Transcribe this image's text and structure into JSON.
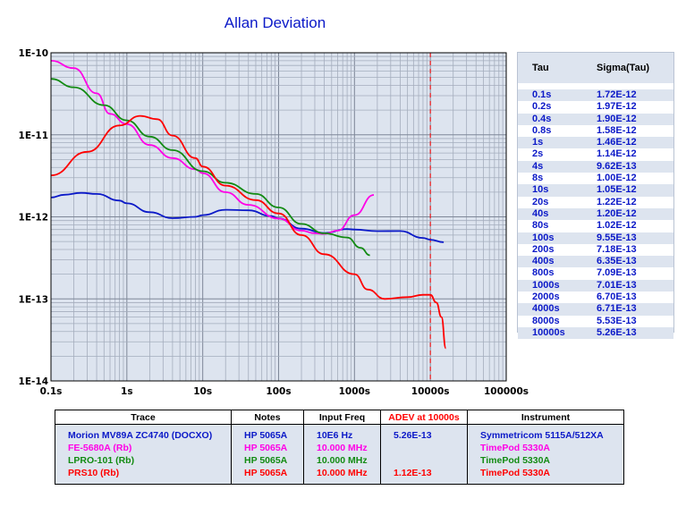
{
  "chart_data": {
    "type": "line",
    "title": "Allan Deviation",
    "x_scale": "log",
    "y_scale": "log",
    "xlim": [
      0.1,
      100000
    ],
    "ylim": [
      1e-14,
      1e-10
    ],
    "grid": true,
    "x_tick_labels": [
      "0.1s",
      "1s",
      "10s",
      "100s",
      "1000s",
      "10000s",
      "100000s"
    ],
    "y_tick_labels": [
      "1E-10",
      "1E-11",
      "1E-12",
      "1E-13",
      "1E-14"
    ],
    "reference_line_x": 10000,
    "series": [
      {
        "name": "Morion MV89A ZC4740 (DOCXO)",
        "color": "#0b19c8",
        "points": [
          [
            0.1,
            1.72e-12
          ],
          [
            0.15,
            1.86e-12
          ],
          [
            0.25,
            1.96e-12
          ],
          [
            0.4,
            1.9e-12
          ],
          [
            0.8,
            1.58e-12
          ],
          [
            1,
            1.46e-12
          ],
          [
            2,
            1.14e-12
          ],
          [
            4,
            9.62e-13
          ],
          [
            8,
            1e-12
          ],
          [
            10,
            1.05e-12
          ],
          [
            20,
            1.22e-12
          ],
          [
            40,
            1.2e-12
          ],
          [
            80,
            1.02e-12
          ],
          [
            100,
            9.55e-13
          ],
          [
            200,
            7.18e-13
          ],
          [
            400,
            6.35e-13
          ],
          [
            800,
            7.09e-13
          ],
          [
            1000,
            7.01e-13
          ],
          [
            2000,
            6.7e-13
          ],
          [
            4000,
            6.71e-13
          ],
          [
            8000,
            5.53e-13
          ],
          [
            10000,
            5.26e-13
          ],
          [
            15000,
            4.9e-13
          ]
        ]
      },
      {
        "name": "FE-5680A (Rb)",
        "color": "#ff00e6",
        "points": [
          [
            0.1,
            8e-11
          ],
          [
            0.2,
            6.5e-11
          ],
          [
            0.4,
            3.2e-11
          ],
          [
            0.6,
            1.8e-11
          ],
          [
            1,
            1.35e-11
          ],
          [
            2,
            7.5e-12
          ],
          [
            4,
            5.2e-12
          ],
          [
            8,
            3.8e-12
          ],
          [
            10,
            3.4e-12
          ],
          [
            20,
            2e-12
          ],
          [
            40,
            1.4e-12
          ],
          [
            100,
            9.5e-13
          ],
          [
            200,
            6.8e-13
          ],
          [
            300,
            6.3e-13
          ],
          [
            400,
            6.2e-13
          ],
          [
            600,
            6.8e-13
          ],
          [
            1000,
            1.05e-12
          ],
          [
            1800,
            1.85e-12
          ]
        ]
      },
      {
        "name": "LPRO-101 (Rb)",
        "color": "#128b12",
        "points": [
          [
            0.1,
            4.8e-11
          ],
          [
            0.2,
            3.8e-11
          ],
          [
            0.5,
            2.3e-11
          ],
          [
            1,
            1.5e-11
          ],
          [
            2,
            9.5e-12
          ],
          [
            4,
            6.5e-12
          ],
          [
            10,
            3.6e-12
          ],
          [
            20,
            2.6e-12
          ],
          [
            50,
            1.9e-12
          ],
          [
            100,
            1.3e-12
          ],
          [
            200,
            8.2e-13
          ],
          [
            400,
            6.3e-13
          ],
          [
            800,
            5.6e-13
          ],
          [
            1200,
            4.2e-13
          ],
          [
            1600,
            3.4e-13
          ]
        ]
      },
      {
        "name": "PRS10 (Rb)",
        "color": "#ff0000",
        "points": [
          [
            0.1,
            3.2e-12
          ],
          [
            0.3,
            6.2e-12
          ],
          [
            0.8,
            1.3e-11
          ],
          [
            1.5,
            1.7e-11
          ],
          [
            2.5,
            1.55e-11
          ],
          [
            4,
            9.8e-12
          ],
          [
            8,
            5.2e-12
          ],
          [
            10,
            4.1e-12
          ],
          [
            20,
            2.4e-12
          ],
          [
            50,
            1.6e-12
          ],
          [
            100,
            1.1e-12
          ],
          [
            200,
            6e-13
          ],
          [
            400,
            3.5e-13
          ],
          [
            1000,
            2e-13
          ],
          [
            1500,
            1.3e-13
          ],
          [
            2500,
            1e-13
          ],
          [
            5000,
            1.05e-13
          ],
          [
            8000,
            1.12e-13
          ],
          [
            10000,
            1.12e-13
          ],
          [
            12000,
            9e-14
          ],
          [
            14000,
            6e-14
          ],
          [
            16000,
            2.5e-14
          ]
        ]
      }
    ]
  },
  "sigma_table": {
    "headers": [
      "Tau",
      "Sigma(Tau)"
    ],
    "rows": [
      [
        "0.1s",
        "1.72E-12"
      ],
      [
        "0.2s",
        "1.97E-12"
      ],
      [
        "0.4s",
        "1.90E-12"
      ],
      [
        "0.8s",
        "1.58E-12"
      ],
      [
        "1s",
        "1.46E-12"
      ],
      [
        "2s",
        "1.14E-12"
      ],
      [
        "4s",
        "9.62E-13"
      ],
      [
        "8s",
        "1.00E-12"
      ],
      [
        "10s",
        "1.05E-12"
      ],
      [
        "20s",
        "1.22E-12"
      ],
      [
        "40s",
        "1.20E-12"
      ],
      [
        "80s",
        "1.02E-12"
      ],
      [
        "100s",
        "9.55E-13"
      ],
      [
        "200s",
        "7.18E-13"
      ],
      [
        "400s",
        "6.35E-13"
      ],
      [
        "800s",
        "7.09E-13"
      ],
      [
        "1000s",
        "7.01E-13"
      ],
      [
        "2000s",
        "6.70E-13"
      ],
      [
        "4000s",
        "6.71E-13"
      ],
      [
        "8000s",
        "5.53E-13"
      ],
      [
        "10000s",
        "5.26E-13"
      ]
    ]
  },
  "legend_table": {
    "headers": [
      "Trace",
      "Notes",
      "Input Freq",
      "ADEV at 10000s",
      "Instrument"
    ],
    "adev_header_color": "#ff0000",
    "rows": [
      {
        "trace": "Morion MV89A ZC4740 (DOCXO)",
        "notes": "HP 5065A",
        "freq": "10E6 Hz",
        "adev": "5.26E-13",
        "instrument": "Symmetricom 5115A/512XA",
        "color": "#0b19c8"
      },
      {
        "trace": "FE-5680A (Rb)",
        "notes": "HP 5065A",
        "freq": "10.000 MHz",
        "adev": "",
        "instrument": "TimePod 5330A",
        "color": "#ff00e6"
      },
      {
        "trace": "LPRO-101 (Rb)",
        "notes": "HP 5065A",
        "freq": "10.000 MHz",
        "adev": "",
        "instrument": "TimePod 5330A",
        "color": "#128b12"
      },
      {
        "trace": "PRS10 (Rb)",
        "notes": "HP 5065A",
        "freq": "10.000 MHz",
        "adev": "1.12E-13",
        "instrument": "TimePod 5330A",
        "color": "#ff0000"
      }
    ]
  }
}
